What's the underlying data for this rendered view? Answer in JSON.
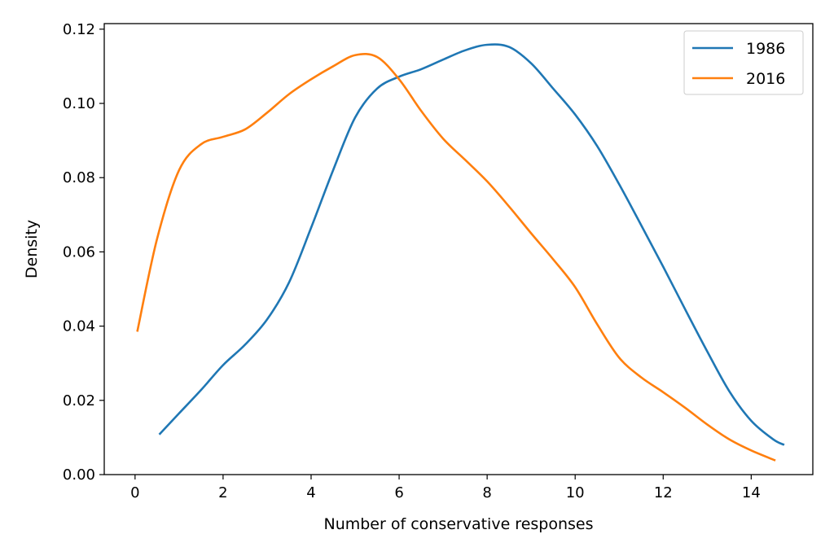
{
  "chart_data": {
    "type": "line",
    "title": "",
    "xlabel": "Number of conservative responses",
    "ylabel": "Density",
    "xlim": [
      -0.7,
      15.4
    ],
    "ylim": [
      0,
      0.1215
    ],
    "xticks": [
      0,
      2,
      4,
      6,
      8,
      10,
      12,
      14
    ],
    "yticks": [
      0.0,
      0.02,
      0.04,
      0.06,
      0.08,
      0.1,
      0.12
    ],
    "ytick_labels": [
      "0.00",
      "0.02",
      "0.04",
      "0.06",
      "0.08",
      "0.10",
      "0.12"
    ],
    "grid": false,
    "legend_position": "top-right",
    "series": [
      {
        "name": "1986",
        "color": "#1f77b4",
        "x": [
          0.55,
          1.0,
          1.5,
          2.0,
          2.5,
          3.0,
          3.5,
          4.0,
          4.5,
          5.0,
          5.5,
          6.0,
          6.5,
          7.0,
          7.5,
          8.0,
          8.5,
          9.0,
          9.5,
          10.0,
          10.5,
          11.0,
          11.5,
          12.0,
          12.5,
          13.0,
          13.5,
          14.0,
          14.5,
          14.75
        ],
        "y": [
          0.0108,
          0.0165,
          0.0228,
          0.0295,
          0.035,
          0.0418,
          0.0518,
          0.0665,
          0.082,
          0.0962,
          0.104,
          0.1072,
          0.1092,
          0.1118,
          0.1143,
          0.1158,
          0.1152,
          0.1108,
          0.104,
          0.097,
          0.0885,
          0.0782,
          0.0672,
          0.056,
          0.0445,
          0.0332,
          0.0225,
          0.0145,
          0.0095,
          0.008
        ]
      },
      {
        "name": "2016",
        "color": "#ff7f0e",
        "x": [
          0.05,
          0.5,
          1.0,
          1.5,
          2.0,
          2.5,
          3.0,
          3.5,
          4.0,
          4.5,
          5.0,
          5.5,
          6.0,
          6.5,
          7.0,
          7.5,
          8.0,
          8.5,
          9.0,
          9.5,
          10.0,
          10.5,
          11.0,
          11.5,
          12.0,
          12.5,
          13.0,
          13.5,
          14.0,
          14.55
        ],
        "y": [
          0.0385,
          0.0635,
          0.082,
          0.089,
          0.091,
          0.093,
          0.0975,
          0.1025,
          0.1065,
          0.11,
          0.113,
          0.1125,
          0.1065,
          0.098,
          0.0905,
          0.0848,
          0.079,
          0.0722,
          0.065,
          0.058,
          0.0505,
          0.0405,
          0.0315,
          0.0262,
          0.0222,
          0.018,
          0.0135,
          0.0095,
          0.0065,
          0.0038
        ]
      }
    ]
  }
}
